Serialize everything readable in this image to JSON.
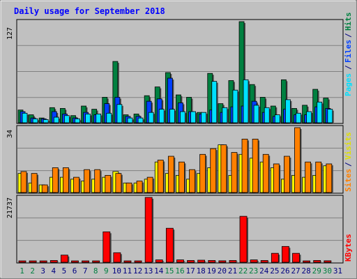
{
  "title": "Daily usage for September 2018",
  "colors": {
    "background": "#c0c0c0",
    "plot": "#c0c0c0",
    "title": "#0000ff",
    "hits": "#008040",
    "files": "#0040ff",
    "pages": "#00e0ff",
    "visits": "#ffff00",
    "sites": "#ff8000",
    "kbytes": "#ff0000",
    "weekend_day": "#008040",
    "weekday": "#000080"
  },
  "chart_data": [
    {
      "type": "bar",
      "panel": "top",
      "max_label": "127",
      "ylim": [
        0,
        127
      ],
      "legend_labels": [
        "Pages",
        "Files",
        "Hits"
      ],
      "categories": [
        "1",
        "2",
        "3",
        "4",
        "5",
        "6",
        "7",
        "8",
        "9",
        "10",
        "11",
        "12",
        "13",
        "14",
        "15",
        "16",
        "17",
        "18",
        "19",
        "20",
        "21",
        "22",
        "23",
        "24",
        "25",
        "26",
        "27",
        "28",
        "29",
        "30",
        "31"
      ],
      "series": [
        {
          "name": "Hits",
          "values": [
            16,
            10,
            6,
            19,
            18,
            9,
            21,
            17,
            32,
            77,
            10,
            11,
            34,
            45,
            63,
            35,
            32,
            13,
            62,
            24,
            53,
            127,
            48,
            32,
            21,
            54,
            18,
            22,
            42,
            31,
            0
          ]
        },
        {
          "name": "Files",
          "values": [
            14,
            6,
            5,
            14,
            11,
            6,
            13,
            10,
            24,
            32,
            8,
            8,
            27,
            30,
            56,
            25,
            14,
            11,
            16,
            13,
            20,
            21,
            27,
            13,
            8,
            17,
            10,
            10,
            20,
            18,
            0
          ]
        },
        {
          "name": "Pages",
          "values": [
            12,
            5,
            4,
            7,
            9,
            5,
            11,
            11,
            12,
            23,
            6,
            6,
            13,
            17,
            17,
            14,
            14,
            13,
            52,
            19,
            41,
            54,
            22,
            19,
            10,
            29,
            12,
            14,
            26,
            17,
            0
          ]
        }
      ]
    },
    {
      "type": "bar",
      "panel": "middle",
      "max_label": "34",
      "ylim": [
        0,
        34
      ],
      "legend_labels": [
        "Sites",
        "Visits"
      ],
      "categories": [
        "1",
        "2",
        "3",
        "4",
        "5",
        "6",
        "7",
        "8",
        "9",
        "10",
        "11",
        "12",
        "13",
        "14",
        "15",
        "16",
        "17",
        "18",
        "19",
        "20",
        "21",
        "22",
        "23",
        "24",
        "25",
        "26",
        "27",
        "28",
        "29",
        "30",
        "31"
      ],
      "series": [
        {
          "name": "Visits",
          "values": [
            10,
            5,
            4,
            8,
            8,
            7,
            6,
            7,
            8,
            11,
            5,
            5,
            7,
            16,
            10,
            9,
            7,
            10,
            13,
            25,
            9,
            20,
            18,
            16,
            13,
            7,
            9,
            8,
            9,
            14,
            0
          ]
        },
        {
          "name": "Sites",
          "values": [
            11,
            10,
            4,
            13,
            13,
            8,
            12,
            12,
            9,
            10,
            5,
            6,
            8,
            17,
            19,
            16,
            12,
            20,
            23,
            25,
            21,
            28,
            28,
            20,
            15,
            19,
            34,
            16,
            16,
            15,
            0
          ]
        }
      ]
    },
    {
      "type": "bar",
      "panel": "bottom",
      "max_label": "21737",
      "ylim": [
        0,
        21737
      ],
      "legend_labels": [
        "KBytes"
      ],
      "categories": [
        "1",
        "2",
        "3",
        "4",
        "5",
        "6",
        "7",
        "8",
        "9",
        "10",
        "11",
        "12",
        "13",
        "14",
        "15",
        "16",
        "17",
        "18",
        "19",
        "20",
        "21",
        "22",
        "23",
        "24",
        "25",
        "26",
        "27",
        "28",
        "29",
        "30",
        "31"
      ],
      "series": [
        {
          "name": "KBytes",
          "values": [
            400,
            400,
            400,
            600,
            2400,
            400,
            400,
            400,
            10200,
            3200,
            400,
            400,
            21737,
            800,
            11400,
            800,
            600,
            700,
            600,
            500,
            600,
            15400,
            800,
            600,
            3000,
            5300,
            3000,
            400,
            600,
            500,
            0
          ]
        }
      ]
    }
  ],
  "x_labels": [
    "1",
    "2",
    "3",
    "4",
    "5",
    "6",
    "7",
    "8",
    "9",
    "10",
    "11",
    "12",
    "13",
    "14",
    "15",
    "16",
    "17",
    "18",
    "19",
    "20",
    "21",
    "22",
    "23",
    "24",
    "25",
    "26",
    "27",
    "28",
    "29",
    "30",
    "31"
  ],
  "weekend_days": [
    "1",
    "2",
    "8",
    "9",
    "15",
    "16",
    "22",
    "23",
    "29",
    "30"
  ]
}
